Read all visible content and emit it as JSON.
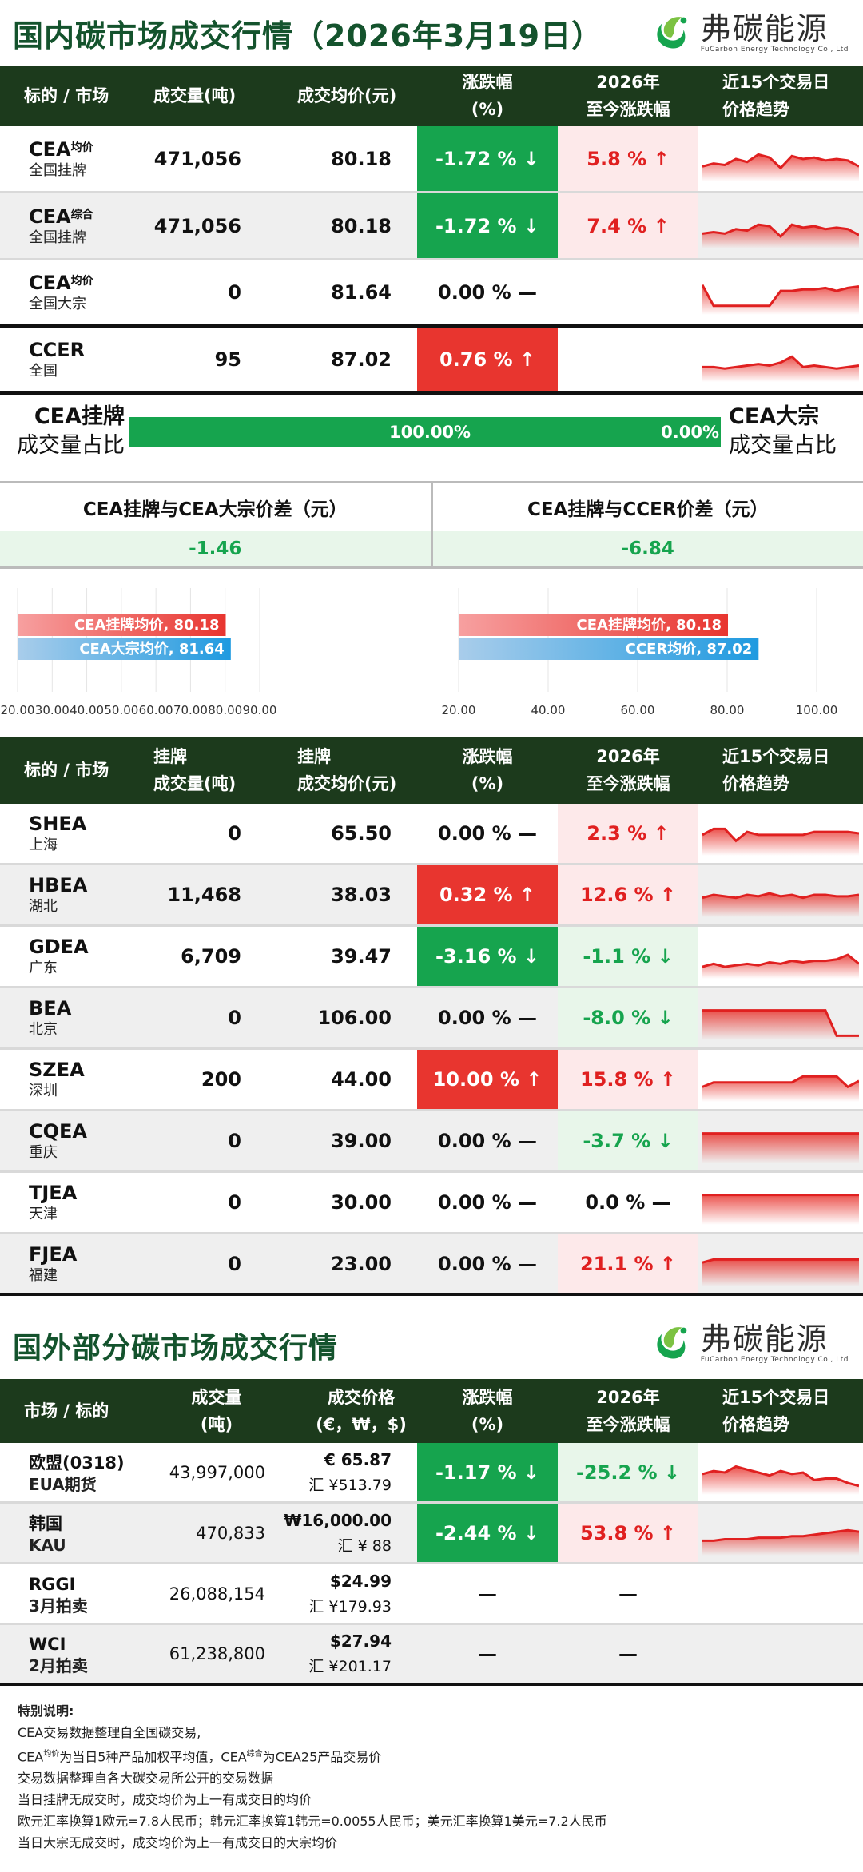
{
  "domestic": {
    "title": "国内碳市场成交行情（2026年3月19日）",
    "logo_cn": "弗碳能源",
    "logo_en": "FuCarbon Energy Technology Co., Ltd",
    "headers": {
      "h1": "标的 / 市场",
      "h2": "成交量(吨)",
      "h3": "成交均价(元)",
      "h4a": "涨跌幅",
      "h4b": "(%)",
      "h5a": "2026年",
      "h5b": "至今涨跌幅",
      "h6a": "近15个交易日",
      "h6b": "价格趋势"
    },
    "rows": [
      {
        "name": "CEA",
        "sup": "均价",
        "sub": "全国挂牌",
        "volume": "471,056",
        "price": "80.18",
        "change": "-1.72 % ↓",
        "ytd": "5.8 % ↑",
        "trend": [
          5,
          5.2,
          5.1,
          5.5,
          5.3,
          5.8,
          5.6,
          4.9,
          5.7,
          5.5,
          5.6,
          5.4,
          5.5,
          5.4,
          5.0
        ]
      },
      {
        "name": "CEA",
        "sup": "综合",
        "sub": "全国挂牌",
        "volume": "471,056",
        "price": "80.18",
        "change": "-1.72 % ↓",
        "ytd": "7.4 % ↑",
        "trend": [
          5,
          5.1,
          5.0,
          5.3,
          5.2,
          5.6,
          5.5,
          4.8,
          5.6,
          5.4,
          5.5,
          5.3,
          5.4,
          5.3,
          4.9
        ]
      },
      {
        "name": "CEA",
        "sup": "均价",
        "sub": "全国大宗",
        "volume": "0",
        "price": "81.64",
        "change": "0.00 % —",
        "ytd": "",
        "trend": [
          6,
          4.6,
          4.6,
          4.6,
          4.6,
          4.6,
          4.6,
          5.6,
          5.6,
          5.7,
          5.7,
          5.8,
          5.6,
          5.8,
          5.9
        ]
      },
      {
        "name": "CCER",
        "sup": "",
        "sub": "全国",
        "volume": "95",
        "price": "87.02",
        "change": "0.76 % ↑",
        "ytd": "",
        "trend": [
          5,
          5,
          4.9,
          5,
          5.1,
          5.2,
          5.1,
          5.3,
          5.7,
          5.0,
          5.1,
          5.0,
          4.9,
          5.0,
          5.1
        ]
      }
    ],
    "share": {
      "left_a": "CEA挂牌",
      "left_b": "成交量占比",
      "right_a": "CEA大宗",
      "right_b": "成交量占比",
      "left_pct": "100.00%",
      "right_pct": "0.00%",
      "fraction": 1.0
    },
    "diff": {
      "t1": "CEA挂牌与CEA大宗价差（元）",
      "v1": "-1.46",
      "t2": "CEA挂牌与CCER价差（元）",
      "v2": "-6.84"
    },
    "charts": [
      {
        "bars": [
          {
            "label": "CEA挂牌均价, 80.18",
            "value": 80.18
          },
          {
            "label": "CEA大宗均价, 81.64",
            "value": 81.64
          }
        ],
        "min": 20,
        "max": 90,
        "ticks": [
          "20.00",
          "30.00",
          "40.00",
          "50.00",
          "60.00",
          "70.00",
          "80.00",
          "90.00"
        ]
      },
      {
        "bars": [
          {
            "label": "CEA挂牌均价, 80.18",
            "value": 80.18
          },
          {
            "label": "CCER均价, 87.02",
            "value": 87.02
          }
        ],
        "min": 20,
        "max": 100,
        "ticks": [
          "20.00",
          "40.00",
          "60.00",
          "80.00",
          "100.00"
        ]
      }
    ]
  },
  "regional": {
    "headers": {
      "h1": "标的 / 市场",
      "h2a": "挂牌",
      "h2b": "成交量(吨)",
      "h3a": "挂牌",
      "h3b": "成交均价(元)",
      "h4a": "涨跌幅",
      "h4b": "(%)",
      "h5a": "2026年",
      "h5b": "至今涨跌幅",
      "h6a": "近15个交易日",
      "h6b": "价格趋势"
    },
    "rows": [
      {
        "name": "SHEA",
        "sub": "上海",
        "volume": "0",
        "price": "65.50",
        "change": "0.00 % —",
        "cstyle": "plain",
        "ytd": "2.3 % ↑",
        "ystyle": "up",
        "trend": [
          5.4,
          5.8,
          5.8,
          5.0,
          5.6,
          5.4,
          5.4,
          5.4,
          5.4,
          5.4,
          5.6,
          5.6,
          5.6,
          5.6,
          5.5
        ]
      },
      {
        "name": "HBEA",
        "sub": "湖北",
        "volume": "11,468",
        "price": "38.03",
        "change": "0.32 % ↑",
        "cstyle": "up",
        "ytd": "12.6 % ↑",
        "ystyle": "up",
        "trend": [
          5.3,
          5.5,
          5.4,
          5.3,
          5.5,
          5.4,
          5.6,
          5.4,
          5.5,
          5.3,
          5.5,
          5.5,
          5.4,
          5.4,
          5.5
        ]
      },
      {
        "name": "GDEA",
        "sub": "广东",
        "volume": "6,709",
        "price": "39.47",
        "change": "-3.16 % ↓",
        "cstyle": "down",
        "ytd": "-1.1 % ↓",
        "ystyle": "down",
        "trend": [
          4.8,
          5.0,
          4.8,
          4.9,
          5.0,
          4.9,
          5.1,
          5.0,
          5.2,
          5.1,
          5.2,
          5.2,
          5.3,
          5.6,
          5.0
        ]
      },
      {
        "name": "BEA",
        "sub": "北京",
        "volume": "0",
        "price": "106.00",
        "change": "0.00 % —",
        "cstyle": "plain",
        "ytd": "-8.0 % ↓",
        "ystyle": "down",
        "trend": [
          6,
          6,
          6,
          6,
          6,
          6,
          6,
          6,
          6,
          6,
          6,
          6,
          4.3,
          4.3,
          4.3
        ]
      },
      {
        "name": "SZEA",
        "sub": "深圳",
        "volume": "200",
        "price": "44.00",
        "change": "10.00 % ↑",
        "cstyle": "up",
        "ytd": "15.8 % ↑",
        "ystyle": "up",
        "trend": [
          5.0,
          5.3,
          5.3,
          5.3,
          5.3,
          5.3,
          5.3,
          5.3,
          5.3,
          5.7,
          5.7,
          5.7,
          5.7,
          5.0,
          5.4
        ]
      },
      {
        "name": "CQEA",
        "sub": "重庆",
        "volume": "0",
        "price": "39.00",
        "change": "0.00 % —",
        "cstyle": "plain",
        "ytd": "-3.7 % ↓",
        "ystyle": "down",
        "trend": [
          6,
          6,
          6,
          6,
          6,
          6,
          6,
          6,
          6,
          6,
          6,
          6,
          6,
          6,
          6
        ]
      },
      {
        "name": "TJEA",
        "sub": "天津",
        "volume": "0",
        "price": "30.00",
        "change": "0.00 % —",
        "cstyle": "plain",
        "ytd": "0.0 % —",
        "ystyle": "plain",
        "trend": [
          6,
          6,
          6,
          6,
          6,
          6,
          6,
          6,
          6,
          6,
          6,
          6,
          6,
          6,
          6
        ]
      },
      {
        "name": "FJEA",
        "sub": "福建",
        "volume": "0",
        "price": "23.00",
        "change": "0.00 % —",
        "cstyle": "plain",
        "ytd": "21.1 % ↑",
        "ystyle": "up",
        "trend": [
          5.6,
          5.8,
          5.8,
          5.8,
          5.8,
          5.8,
          5.8,
          5.8,
          5.8,
          5.8,
          5.8,
          5.8,
          5.8,
          5.8,
          5.8
        ]
      }
    ]
  },
  "foreign": {
    "title": "国外部分碳市场成交行情",
    "logo_cn": "弗碳能源",
    "logo_en": "FuCarbon Energy Technology Co., Ltd",
    "headers": {
      "h1": "市场 / 标的",
      "h2a": "成交量",
      "h2b": "(吨)",
      "h3a": "成交价格",
      "h3b": "(€，₩，$)",
      "h4a": "涨跌幅",
      "h4b": "(%)",
      "h5a": "2026年",
      "h5b": "至今涨跌幅",
      "h6a": "近15个交易日",
      "h6b": "价格趋势"
    },
    "rows": [
      {
        "name": "欧盟(0318)",
        "sub": "EUA期货",
        "volume": "43,997,000",
        "price": "€ 65.87",
        "fx": "汇 ¥513.79",
        "change": "-1.17 % ↓",
        "cstyle": "down",
        "ytd": "-25.2 % ↓",
        "ystyle": "down",
        "trend": [
          5.4,
          5.6,
          5.5,
          5.9,
          5.7,
          5.5,
          5.3,
          5.6,
          5.4,
          5.5,
          5.0,
          5.1,
          5.1,
          4.8,
          4.6
        ]
      },
      {
        "name": "韩国",
        "sub": "KAU",
        "volume": "470,833",
        "price": "₩16,000.00",
        "fx": "汇 ¥ 88",
        "change": "-2.44 % ↓",
        "cstyle": "down",
        "ytd": "53.8 % ↑",
        "ystyle": "up",
        "trend": [
          5.0,
          5.0,
          5.1,
          5.1,
          5.1,
          5.2,
          5.2,
          5.2,
          5.3,
          5.3,
          5.4,
          5.5,
          5.6,
          5.7,
          5.6
        ]
      },
      {
        "name": "RGGI",
        "sub": "3月拍卖",
        "volume": "26,088,154",
        "price": "$24.99",
        "fx": "汇 ¥179.93",
        "change": "—",
        "cstyle": "plain",
        "ytd": "—",
        "ystyle": "plain",
        "trend": []
      },
      {
        "name": "WCI",
        "sub": "2月拍卖",
        "volume": "61,238,800",
        "price": "$27.94",
        "fx": "汇 ¥201.17",
        "change": "—",
        "cstyle": "plain",
        "ytd": "—",
        "ystyle": "plain",
        "trend": []
      }
    ]
  },
  "notes": {
    "title": "特别说明:",
    "l1": "CEA交易数据整理自全国碳交易,",
    "l2a": "CEA",
    "l2sup1": "均价",
    "l2b": "为当日5种产品加权平均值，CEA",
    "l2sup2": "综合",
    "l2c": "为CEA25产品交易价",
    "l3": "交易数据整理自各大碳交易所公开的交易数据",
    "l4": "当日挂牌无成交时，成交均价为上一有成交日的均价",
    "l5": "欧元汇率换算1欧元=7.8人民币；韩元汇率换算1韩元=0.0055人民币；美元汇率换算1美元=7.2人民币",
    "l6": "当日大宗无成交时，成交均价为上一有成交日的大宗均价"
  },
  "colors": {
    "up": "#e8352f",
    "down": "#16a44e",
    "header": "#1c3a1c"
  }
}
